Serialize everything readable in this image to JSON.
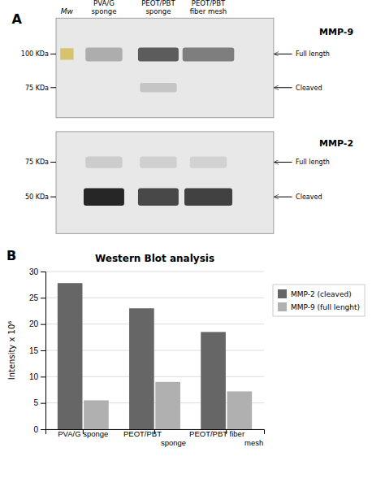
{
  "chart_data": [
    {
      "type": "blot",
      "annotations": [
        "A",
        "Mw",
        "PVA/G\nsponge",
        "PEOT/PBT\nsponge",
        "PEOT/PBT\nfiber mesh",
        "100 KDa",
        "75 KDa",
        "75 KDa",
        "50 KDa",
        "Full length",
        "Cleaved",
        "Full length",
        "Cleaved",
        "MMP-9",
        "MMP-2"
      ]
    },
    {
      "type": "bar",
      "title": "Western Blot analysis",
      "categories": [
        "PVA/G sponge",
        "PEOT/PBT\nsponge",
        "PEOT/PBT fiber\nmesh"
      ],
      "series": [
        {
          "name": "MMP-2 (cleaved)",
          "color": "#666666",
          "values": [
            27.8,
            23.0,
            18.5
          ]
        },
        {
          "name": "MMP-9 (full lenght)",
          "color": "#b0b0b0",
          "values": [
            5.5,
            9.0,
            7.2
          ]
        }
      ],
      "ylabel": "Intensity x 10⁶",
      "ylim": [
        0,
        30
      ],
      "yticks": [
        0,
        5,
        10,
        15,
        20,
        25,
        30
      ],
      "grid": true,
      "legend": "right",
      "annotations": [
        "B"
      ]
    }
  ]
}
